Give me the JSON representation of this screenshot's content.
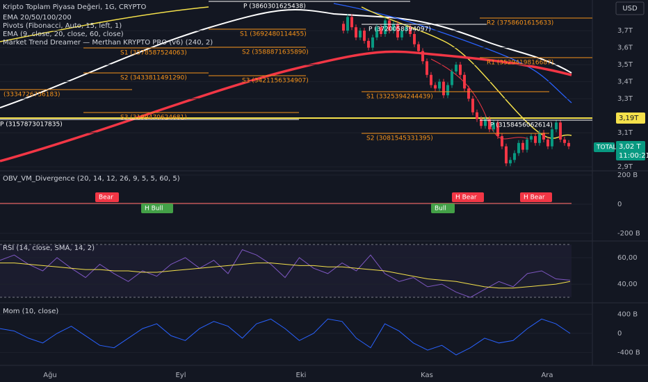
{
  "header": {
    "title": "Kripto Toplam Piyasa Değeri, 1G, CRYPTO",
    "currency": "USD"
  },
  "indicators": [
    "EMA 20/50/100/200",
    "Pivots (Fibonacci, Auto, 15, left, 1)",
    "EMA (9, close, 20, close, 60, close)",
    "Market Trend Dreamer — Merthan KRYPTO PRO (v6) (240, 2)"
  ],
  "price": {
    "ylim": [
      2.88,
      3.88
    ],
    "yticks": [
      {
        "value": 2.9,
        "label": "2,9T"
      },
      {
        "value": 3.1,
        "label": "3,1T"
      },
      {
        "value": 3.3,
        "label": "3,3T"
      },
      {
        "value": 3.4,
        "label": "3,4T"
      },
      {
        "value": 3.5,
        "label": "3,5T"
      },
      {
        "value": 3.6,
        "label": "3,6T"
      },
      {
        "value": 3.7,
        "label": "3,7T"
      }
    ],
    "closes": [
      3.74,
      3.7,
      3.78,
      3.72,
      3.66,
      3.7,
      3.64,
      3.6,
      3.66,
      3.72,
      3.68,
      3.76,
      3.7,
      3.74,
      3.66,
      3.7,
      3.72,
      3.68,
      3.62,
      3.58,
      3.52,
      3.44,
      3.38,
      3.36,
      3.4,
      3.32,
      3.38,
      3.46,
      3.5,
      3.44,
      3.36,
      3.3,
      3.22,
      3.18,
      3.14,
      3.18,
      3.12,
      3.16,
      3.08,
      3.02,
      2.92,
      2.94,
      2.98,
      3.04,
      3.0,
      3.06,
      3.08,
      3.04,
      3.1,
      3.06,
      3.02,
      3.12,
      3.16,
      3.06,
      3.04,
      3.02
    ]
  },
  "pivots": [
    "P (3860301625438)",
    "S1 (3692480114455)",
    "S2 (3588871635890)",
    "S3 (3421156334907)",
    "S1 (3578587524063)",
    "S2 (3433811491290)",
    "S3 (3199470624681)",
    "(3334726756183)",
    "P (3157873017835)",
    "P (3720058394097)",
    "S1 (3325394244439)",
    "R2 (3758601615633)",
    "R1 (3529419816687)",
    "P (3158456062614)",
    "S2 (3081545331395)"
  ],
  "current": {
    "symbol": "TOTAL",
    "price": "3,02 T",
    "countdown": "11:00:21",
    "level": "3,19T"
  },
  "obv": {
    "title": "OBV_VM_Divergence (20, 14, 12, 26, 9, 5, 5, 60, 5)",
    "ylim": [
      -243,
      219
    ],
    "yticks": [
      {
        "value": 200,
        "label": "200 B"
      },
      0,
      {
        "value": -200,
        "label": "-200 B"
      }
    ],
    "signals": [
      "Bear",
      "H Bull",
      "Bull",
      "H Bear",
      "H Bear"
    ]
  },
  "rsi": {
    "title": "RSI (14, close, SMA, 14, 2)",
    "ylim": [
      28,
      71
    ],
    "yticks": [
      {
        "value": 60,
        "label": "60,00"
      },
      {
        "value": 40,
        "label": "40,00"
      }
    ],
    "values": [
      58,
      62,
      55,
      50,
      60,
      52,
      45,
      55,
      48,
      42,
      50,
      46,
      55,
      60,
      52,
      58,
      48,
      66,
      62,
      55,
      45,
      60,
      52,
      48,
      56,
      50,
      62,
      48,
      42,
      45,
      38,
      40,
      34,
      30,
      36,
      42,
      38,
      48,
      50,
      44,
      43
    ],
    "ma": [
      56,
      56,
      55,
      54,
      53,
      52,
      51,
      51,
      50,
      50,
      49,
      49,
      50,
      51,
      52,
      53,
      54,
      55,
      56,
      56,
      55,
      54,
      54,
      53,
      53,
      52,
      51,
      50,
      48,
      46,
      44,
      43,
      42,
      40,
      38,
      37,
      37,
      38,
      39,
      40,
      42
    ]
  },
  "mom": {
    "title": "Mom (10, close)",
    "ylim": [
      -580,
      580
    ],
    "yticks": [
      {
        "value": 400,
        "label": "400 B"
      },
      0,
      {
        "value": -400,
        "label": "-400 B"
      }
    ],
    "values": [
      100,
      50,
      -100,
      -200,
      0,
      150,
      -50,
      -250,
      -300,
      -100,
      100,
      200,
      -50,
      -150,
      100,
      250,
      150,
      -100,
      200,
      300,
      100,
      -150,
      0,
      300,
      250,
      -100,
      -300,
      200,
      50,
      -200,
      -350,
      -250,
      -450,
      -300,
      -100,
      -200,
      -150,
      100,
      300,
      200,
      0
    ]
  },
  "time_axis": [
    "Ağu",
    "Eyl",
    "Eki",
    "Kas",
    "Ara"
  ]
}
